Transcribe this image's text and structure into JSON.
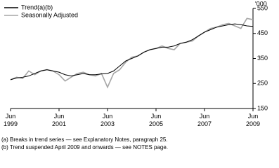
{
  "chart_data": {
    "type": "line",
    "y_unit": "'000",
    "x": [
      1999.5,
      1999.75,
      2000,
      2000.25,
      2000.5,
      2000.75,
      2001,
      2001.25,
      2001.5,
      2001.75,
      2002,
      2002.25,
      2002.5,
      2002.75,
      2003,
      2003.25,
      2003.5,
      2003.75,
      2004,
      2004.25,
      2004.5,
      2004.75,
      2005,
      2005.25,
      2005.5,
      2005.75,
      2006,
      2006.25,
      2006.5,
      2006.75,
      2007,
      2007.25,
      2007.5,
      2007.75,
      2008,
      2008.25,
      2008.5,
      2008.75,
      2009,
      2009.25,
      2009.5
    ],
    "series": [
      {
        "name": "Trend(a)(b)",
        "color": "#000000",
        "values": [
          265,
          272,
          275,
          280,
          290,
          300,
          305,
          300,
          295,
          285,
          280,
          285,
          290,
          285,
          285,
          288,
          290,
          300,
          320,
          340,
          350,
          360,
          375,
          385,
          390,
          395,
          395,
          400,
          410,
          415,
          425,
          440,
          455,
          465,
          475,
          480,
          485,
          488,
          485,
          480,
          478
        ]
      },
      {
        "name": "Seasonally Adjusted",
        "color": "#a6a6a6",
        "values": [
          265,
          275,
          270,
          300,
          285,
          300,
          305,
          300,
          285,
          260,
          275,
          290,
          295,
          285,
          280,
          290,
          235,
          290,
          305,
          335,
          355,
          360,
          375,
          385,
          390,
          400,
          390,
          385,
          410,
          415,
          420,
          440,
          455,
          470,
          475,
          485,
          490,
          480,
          470,
          510,
          505
        ]
      }
    ],
    "xlim": [
      1999.5,
      2009.5
    ],
    "xticks": [
      {
        "value": 1999.5,
        "label": "Jun 1999"
      },
      {
        "value": 2001.5,
        "label": "Jun 2001"
      },
      {
        "value": 2003.5,
        "label": "Jun 2003"
      },
      {
        "value": 2005.5,
        "label": "Jun 2005"
      },
      {
        "value": 2007.5,
        "label": "Jun 2007"
      },
      {
        "value": 2009.5,
        "label": "Jun 2009"
      }
    ],
    "ylim": [
      150,
      550
    ],
    "yticks": [
      150,
      250,
      350,
      450,
      550
    ],
    "notes": [
      "(a) Breaks in trend series — see Explanatory Notes, paragraph 25.",
      "(b) Trend suspended April 2009 and onwards — see NOTES page."
    ]
  }
}
